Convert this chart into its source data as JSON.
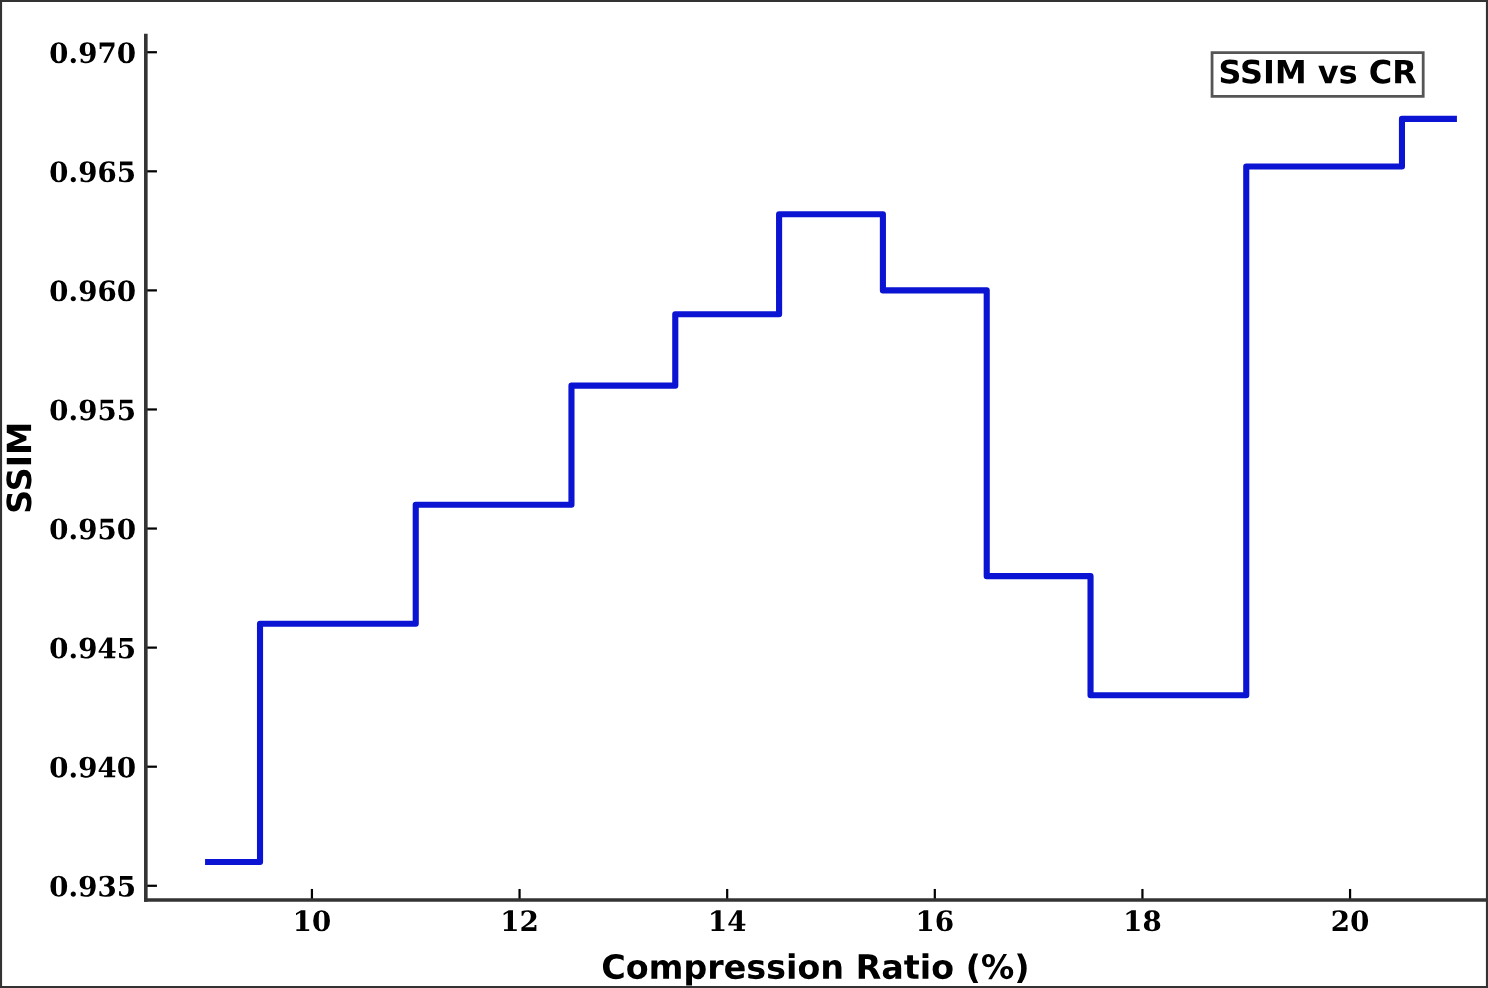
{
  "chart_data": {
    "type": "step",
    "title": "SSIM vs CR",
    "xlabel": "Compression Ratio (%)",
    "ylabel": "SSIM",
    "x": [
      9,
      9.5,
      11,
      12.5,
      13.5,
      14.5,
      15.5,
      16.5,
      17.5,
      19,
      20.5,
      21
    ],
    "series": [
      {
        "color": "#0a14d2",
        "values": [
          0.936,
          0.946,
          0.951,
          0.956,
          0.959,
          0.9632,
          0.96,
          0.948,
          0.943,
          0.9652,
          0.9672,
          0.9672
        ]
      }
    ],
    "xlim": [
      8.4,
      21.3
    ],
    "ylim": [
      0.9344,
      0.9707
    ],
    "xticks": [
      10,
      12,
      14,
      16,
      18,
      20
    ],
    "yticks": [
      {
        "value": 0.935,
        "label": "0.935"
      },
      {
        "value": 0.94,
        "label": "0.940"
      },
      {
        "value": 0.945,
        "label": "0.945"
      },
      {
        "value": 0.95,
        "label": "0.950"
      },
      {
        "value": 0.955,
        "label": "0.955"
      },
      {
        "value": 0.96,
        "label": "0.960"
      },
      {
        "value": 0.965,
        "label": "0.965"
      },
      {
        "value": 0.97,
        "label": "0.970"
      }
    ],
    "grid": false,
    "marker": "none",
    "line_style": "solid"
  }
}
